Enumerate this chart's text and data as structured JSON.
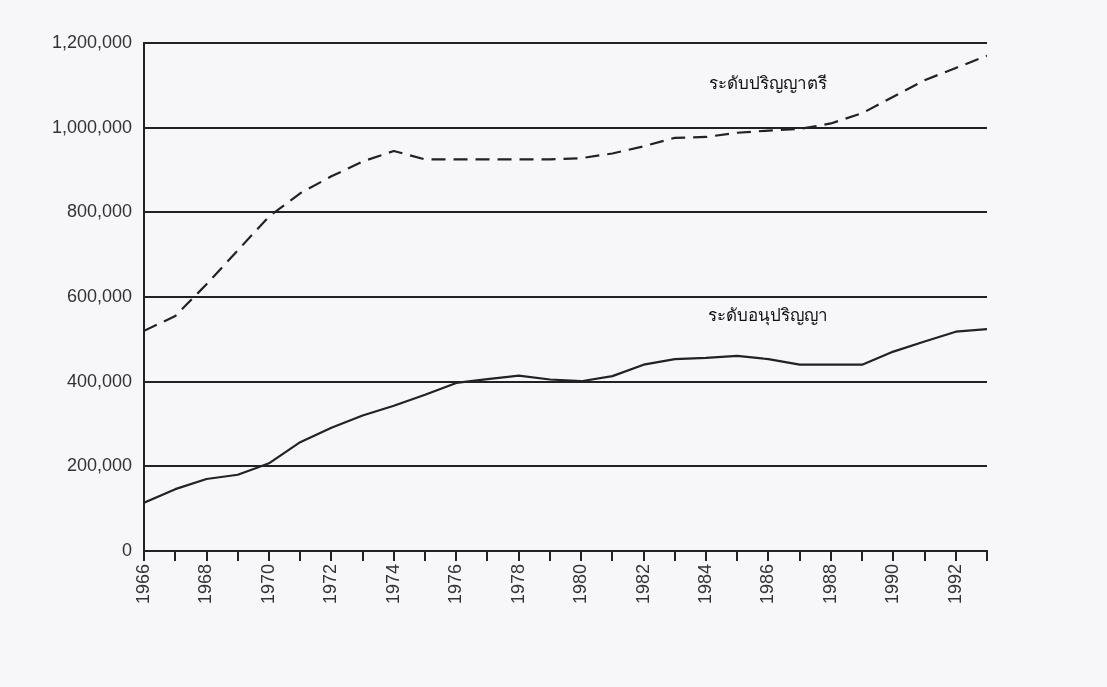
{
  "chart_data": {
    "type": "line",
    "x": [
      1966,
      1967,
      1968,
      1969,
      1970,
      1971,
      1972,
      1973,
      1974,
      1975,
      1976,
      1977,
      1978,
      1979,
      1980,
      1981,
      1982,
      1983,
      1984,
      1985,
      1986,
      1987,
      1988,
      1989,
      1990,
      1991,
      1992,
      1993
    ],
    "series": [
      {
        "name": "ระดับปริญญาตรี",
        "color": "#222222",
        "line_style": "dashed",
        "values": [
          520000,
          555000,
          630000,
          710000,
          790000,
          845000,
          885000,
          920000,
          945000,
          925000,
          925000,
          925000,
          925000,
          925000,
          928000,
          939000,
          956000,
          976000,
          978000,
          988000,
          993000,
          997000,
          1010000,
          1034000,
          1073000,
          1112000,
          1141000,
          1170000
        ]
      },
      {
        "name": "ระดับอนุปริญญา",
        "color": "#222222",
        "line_style": "solid",
        "values": [
          114000,
          146000,
          170000,
          180000,
          207000,
          257000,
          291000,
          320000,
          343000,
          369000,
          397000,
          406000,
          414000,
          405000,
          401000,
          413000,
          440000,
          453000,
          456000,
          461000,
          453000,
          440000,
          440000,
          440000,
          471000,
          495000,
          518000,
          524000
        ]
      }
    ],
    "xlim": [
      1966,
      1993
    ],
    "xticks": [
      1966,
      {
        "value": 1967,
        "label": null
      },
      1968,
      {
        "value": 1969,
        "label": null
      },
      1970,
      {
        "value": 1971,
        "label": null
      },
      1972,
      {
        "value": 1973,
        "label": null
      },
      1974,
      {
        "value": 1975,
        "label": null
      },
      1976,
      {
        "value": 1977,
        "label": null
      },
      1978,
      {
        "value": 1979,
        "label": null
      },
      1980,
      {
        "value": 1981,
        "label": null
      },
      1982,
      {
        "value": 1983,
        "label": null
      },
      1984,
      {
        "value": 1985,
        "label": null
      },
      1986,
      {
        "value": 1987,
        "label": null
      },
      1988,
      {
        "value": 1989,
        "label": null
      },
      1990,
      {
        "value": 1991,
        "label": null
      },
      1992,
      {
        "value": 1993,
        "label": null
      }
    ],
    "ylim": [
      0,
      1200000
    ],
    "yticks": [
      {
        "value": 0,
        "label": "0"
      },
      {
        "value": 200000,
        "label": "200,000"
      },
      {
        "value": 400000,
        "label": "400,000"
      },
      {
        "value": 600000,
        "label": "600,000"
      },
      {
        "value": 800000,
        "label": "800,000"
      },
      {
        "value": 1000000,
        "label": "1,000,000"
      },
      {
        "value": 1200000,
        "label": "1,200,000"
      }
    ],
    "grid": "y",
    "legend": false,
    "marker": "none"
  }
}
